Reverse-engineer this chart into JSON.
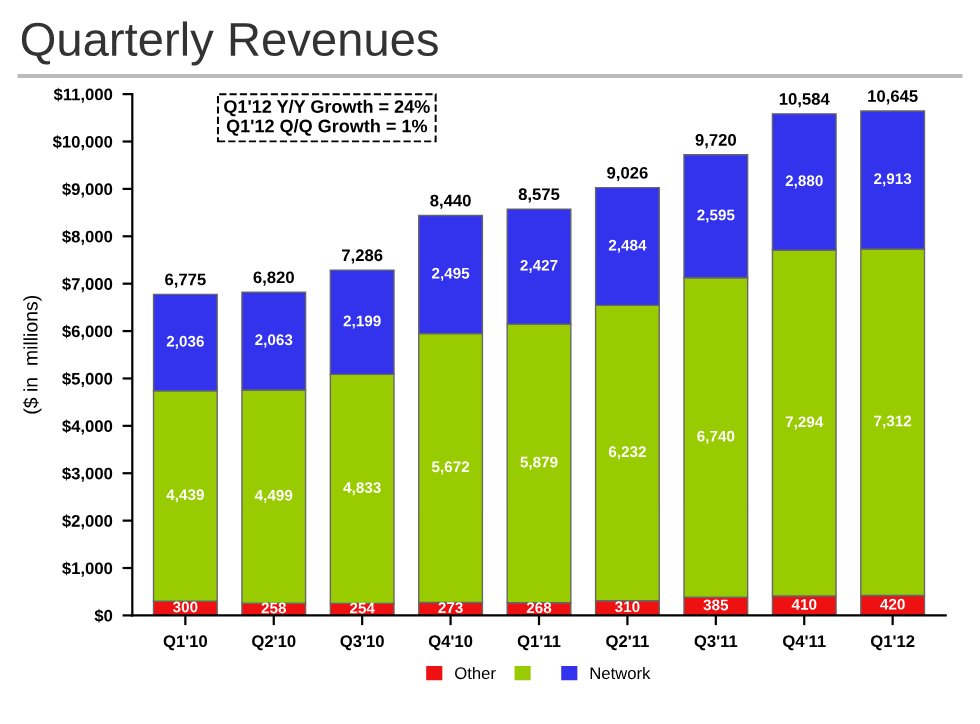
{
  "chart_data": {
    "type": "bar",
    "title": "Quarterly Revenues",
    "ylabel": "($ in  millions)",
    "categories": [
      "Q1'10",
      "Q2'10",
      "Q3'10",
      "Q4'10",
      "Q1'11",
      "Q2'11",
      "Q3'11",
      "Q4'11",
      "Q1'12"
    ],
    "stacked": true,
    "series": [
      {
        "name": "Other",
        "color": "#ee1111",
        "values": [
          300,
          258,
          254,
          273,
          268,
          310,
          385,
          410,
          420
        ],
        "value_labels": [
          "300",
          "258",
          "254",
          "273",
          "268",
          "310",
          "385",
          "410",
          "420"
        ]
      },
      {
        "color": "#99cc00",
        "values": [
          4439,
          4499,
          4833,
          5672,
          5879,
          6232,
          6740,
          7294,
          7312
        ],
        "value_labels": [
          "4,439",
          "4,499",
          "4,833",
          "5,672",
          "5,879",
          "6,232",
          "6,740",
          "7,294",
          "7,312"
        ]
      },
      {
        "name": "Network",
        "color": "#3333ee",
        "values": [
          2036,
          2063,
          2199,
          2495,
          2427,
          2484,
          2595,
          2880,
          2913
        ],
        "value_labels": [
          "2,036",
          "2,063",
          "2,199",
          "2,495",
          "2,427",
          "2,484",
          "2,595",
          "2,880",
          "2,913"
        ]
      }
    ],
    "totals": [
      "6,775",
      "6,820",
      "7,286",
      "8,440",
      "8,575",
      "9,026",
      "9,720",
      "10,584",
      "10,645"
    ],
    "ylim": [
      0,
      11000
    ],
    "yticks": [
      {
        "value": 0,
        "label": "$0"
      },
      {
        "value": 1000,
        "label": "$1,000"
      },
      {
        "value": 2000,
        "label": "$2,000"
      },
      {
        "value": 3000,
        "label": "$3,000"
      },
      {
        "value": 4000,
        "label": "$4,000"
      },
      {
        "value": 5000,
        "label": "$5,000"
      },
      {
        "value": 6000,
        "label": "$6,000"
      },
      {
        "value": 7000,
        "label": "$7,000"
      },
      {
        "value": 8000,
        "label": "$8,000"
      },
      {
        "value": 9000,
        "label": "$9,000"
      },
      {
        "value": 10000,
        "label": "$10,000"
      },
      {
        "value": 11000,
        "label": "$11,000"
      }
    ],
    "annotations": [
      "Q1'12 Y/Y Growth = 24%\nQ1'12 Q/Q Growth = 1%"
    ],
    "legend": "bottom",
    "grid": false
  }
}
